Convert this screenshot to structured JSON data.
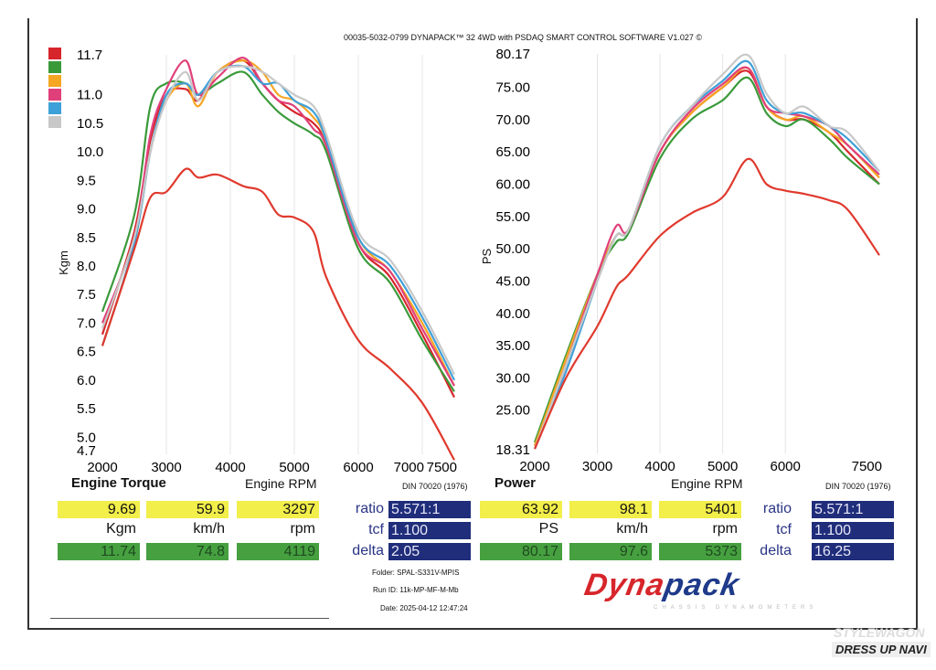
{
  "header": "00035-5032-0799 DYNAPACK™ 32 4WD with PSDAQ SMART CONTROL SOFTWARE V1.027 ©",
  "colors": {
    "red": "#d7262b",
    "green": "#3a9a3a",
    "orange": "#f5a623",
    "pink": "#e0407a",
    "blue": "#3ea0d8",
    "gray": "#c8c8c8",
    "lowred": "#e03a2e"
  },
  "legend": [
    "red",
    "green",
    "orange",
    "pink",
    "blue",
    "gray"
  ],
  "chart_data": [
    {
      "type": "line",
      "title": "Engine Torque",
      "xlabel": "Engine RPM",
      "ylabel": "Kgm",
      "note": "DIN 70020 (1976)",
      "xlim": [
        2000,
        7500
      ],
      "ylim": [
        4.7,
        11.7
      ],
      "xticks": [
        "2000",
        "3000",
        "4000",
        "5000",
        "6000",
        "7000",
        "7500"
      ],
      "xtickvals": [
        2000,
        3000,
        4000,
        5000,
        6000,
        7000,
        7500
      ],
      "yticks": [
        "11.7",
        "11.0",
        "10.5",
        "10.0",
        "9.5",
        "9.0",
        "8.5",
        "8.0",
        "7.5",
        "7.0",
        "6.5",
        "6.0",
        "5.5",
        "5.0",
        "4.7"
      ],
      "ytickvals": [
        11.7,
        11.0,
        10.5,
        10.0,
        9.5,
        9.0,
        8.5,
        8.0,
        7.5,
        7.0,
        6.5,
        6.0,
        5.5,
        5.0,
        4.7
      ],
      "x": [
        2000,
        2500,
        2750,
        3000,
        3300,
        3500,
        3800,
        4200,
        4500,
        4750,
        5000,
        5300,
        5500,
        6000,
        6500,
        7000,
        7500
      ],
      "series": [
        {
          "name": "red",
          "values": [
            6.8,
            8.6,
            10.2,
            11.0,
            11.1,
            10.9,
            11.4,
            11.6,
            11.2,
            10.9,
            10.7,
            10.5,
            10.1,
            8.4,
            7.8,
            6.8,
            5.7
          ]
        },
        {
          "name": "green",
          "values": [
            7.2,
            8.9,
            10.8,
            11.2,
            11.2,
            11.0,
            11.2,
            11.4,
            11.0,
            10.7,
            10.5,
            10.3,
            10.0,
            8.3,
            7.7,
            6.7,
            5.8
          ]
        },
        {
          "name": "orange",
          "values": [
            6.6,
            8.4,
            10.0,
            10.9,
            11.2,
            10.8,
            11.4,
            11.6,
            11.4,
            11.0,
            10.9,
            10.6,
            10.2,
            8.5,
            7.9,
            7.0,
            5.9
          ]
        },
        {
          "name": "pink",
          "values": [
            7.0,
            8.5,
            10.3,
            11.1,
            11.6,
            11.0,
            11.3,
            11.65,
            11.2,
            10.9,
            10.8,
            10.4,
            10.1,
            8.4,
            7.9,
            6.9,
            5.9
          ]
        },
        {
          "name": "blue",
          "values": [
            6.6,
            8.4,
            10.0,
            11.0,
            11.2,
            11.0,
            11.4,
            11.5,
            11.2,
            11.2,
            10.9,
            10.7,
            10.2,
            8.5,
            8.0,
            7.1,
            6.0
          ]
        },
        {
          "name": "gray",
          "values": [
            6.9,
            8.5,
            10.0,
            10.9,
            11.4,
            10.9,
            11.4,
            11.5,
            11.4,
            11.2,
            11.0,
            10.8,
            10.3,
            8.6,
            8.1,
            7.2,
            6.1
          ]
        },
        {
          "name": "lowred",
          "values": [
            6.6,
            8.3,
            9.2,
            9.3,
            9.7,
            9.55,
            9.6,
            9.4,
            9.3,
            8.9,
            8.85,
            8.6,
            7.8,
            6.7,
            6.2,
            5.6,
            4.6
          ]
        }
      ]
    },
    {
      "type": "line",
      "title": "Power",
      "xlabel": "Engine RPM",
      "ylabel": "PS",
      "note": "DIN 70020 (1976)",
      "xlim": [
        2000,
        7500
      ],
      "ylim": [
        18.31,
        80.17
      ],
      "xticks": [
        "2000",
        "3000",
        "4000",
        "5000",
        "6000",
        "7500"
      ],
      "xtickvals": [
        2000,
        3000,
        4000,
        5000,
        6000,
        7500
      ],
      "yticks": [
        "80.17",
        "75.00",
        "70.00",
        "65.00",
        "60.00",
        "55.00",
        "50.00",
        "45.00",
        "40.00",
        "35.00",
        "30.00",
        "25.00",
        "18.31"
      ],
      "ytickvals": [
        80.17,
        75,
        70,
        65,
        60,
        55,
        50,
        45,
        40,
        35,
        30,
        25,
        18.31
      ],
      "x": [
        2000,
        2500,
        3000,
        3300,
        3500,
        4000,
        4500,
        5000,
        5400,
        5700,
        6000,
        6300,
        6700,
        7000,
        7500
      ],
      "series": [
        {
          "name": "red",
          "values": [
            19.5,
            33,
            46,
            52,
            53,
            65,
            71,
            75,
            77.5,
            72,
            70,
            70,
            68,
            65,
            60
          ]
        },
        {
          "name": "green",
          "values": [
            20,
            33.5,
            46,
            51,
            52.5,
            64,
            70,
            73,
            76.5,
            71,
            69,
            70,
            67,
            64,
            60
          ]
        },
        {
          "name": "orange",
          "values": [
            19.5,
            33,
            46,
            52,
            53,
            65,
            71,
            75,
            78,
            72,
            70,
            70.5,
            68,
            66,
            61
          ]
        },
        {
          "name": "pink",
          "values": [
            19,
            32,
            46,
            53.5,
            53,
            65,
            71.5,
            75.5,
            78,
            72,
            71,
            70.5,
            69,
            66,
            61.5
          ]
        },
        {
          "name": "blue",
          "values": [
            19,
            31,
            45,
            52,
            53,
            66,
            72,
            76,
            79,
            73,
            71,
            71,
            69,
            67,
            62
          ]
        },
        {
          "name": "gray",
          "values": [
            19,
            32,
            45,
            52,
            53,
            66,
            72,
            77,
            80,
            74,
            71,
            72,
            69,
            68,
            62
          ]
        },
        {
          "name": "lowred",
          "values": [
            19,
            30,
            38,
            44,
            46,
            52,
            55.5,
            58,
            63.9,
            60,
            59,
            58.5,
            57.5,
            56,
            49
          ]
        }
      ]
    }
  ],
  "torque_table": {
    "y": [
      "9.69",
      "59.9",
      "3297"
    ],
    "units": [
      "Kgm",
      "km/h",
      "rpm"
    ],
    "g": [
      "11.74",
      "74.8",
      "4119"
    ],
    "ratio_label": "ratio",
    "ratio": "5.571:1",
    "tcf_label": "tcf",
    "tcf": "1.100",
    "delta_label": "delta",
    "delta": "2.05"
  },
  "power_table": {
    "y": [
      "63.92",
      "98.1",
      "5401"
    ],
    "units": [
      "PS",
      "km/h",
      "rpm"
    ],
    "g": [
      "80.17",
      "97.6",
      "5373"
    ],
    "ratio_label": "ratio",
    "ratio": "5.571:1",
    "tcf_label": "tcf",
    "tcf": "1.100",
    "delta_label": "delta",
    "delta": "16.25"
  },
  "info": {
    "folder": "Folder:  SPAL-S331V-MPIS",
    "run": "Run ID:  11k-MP-MF-M-Mb",
    "date": "Date:  2025-04-12 12:47:24"
  },
  "logo": {
    "a": "Dyna",
    "b": "pack",
    "sub": "CHASSIS DYNAMOMETERS"
  },
  "watermark": {
    "top": "STYLEWAGON",
    "bottom": "DRESS UP NAVI"
  }
}
